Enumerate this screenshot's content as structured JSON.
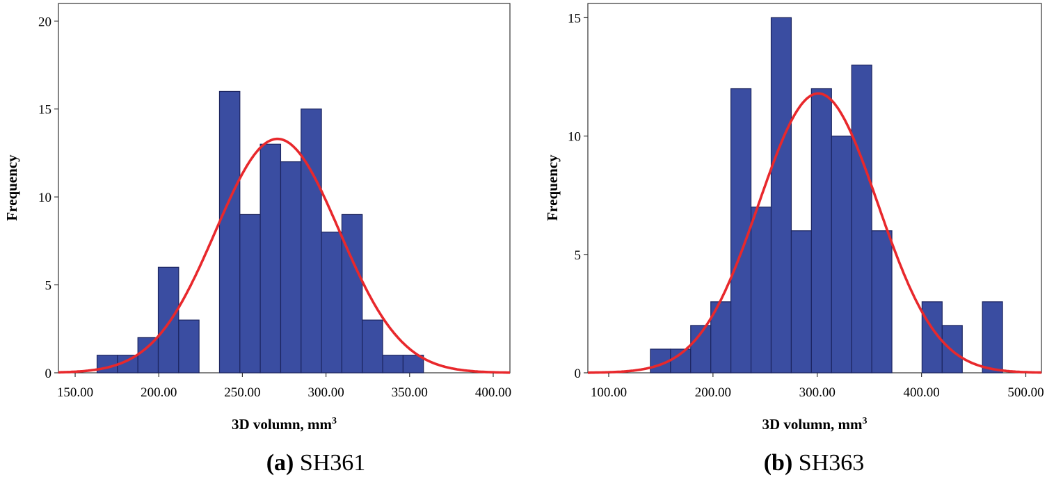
{
  "chart_data": [
    {
      "type": "bar",
      "caption_id": "(a)",
      "caption_name": " SH361",
      "xlabel": "3D volumn, mm",
      "xlabel_sup": "3",
      "ylabel": "Frequency",
      "xlim": [
        140,
        410
      ],
      "ylim": [
        0,
        21
      ],
      "xticks": [
        150,
        200,
        250,
        300,
        350,
        400
      ],
      "xtick_labels": [
        "150.00",
        "200.00",
        "250.00",
        "300.00",
        "350.00",
        "400.00"
      ],
      "yticks": [
        0,
        5,
        10,
        15,
        20
      ],
      "ytick_labels": [
        "0",
        "5",
        "10",
        "15",
        "20"
      ],
      "bin_width": 12.2,
      "bin_starts": [
        163.1,
        175.3,
        187.5,
        199.7,
        211.9,
        236.3,
        248.5,
        260.7,
        272.9,
        285.1,
        297.3,
        309.5,
        321.7,
        333.9,
        346.1
      ],
      "values": [
        1,
        1,
        2,
        6,
        3,
        16,
        9,
        13,
        12,
        15,
        8,
        9,
        3,
        1,
        1
      ],
      "curve": {
        "mean": 271,
        "sd": 37,
        "peak": 13.3
      },
      "colors": {
        "bar": "#3a4da1",
        "curve": "#e8282c"
      }
    },
    {
      "type": "bar",
      "caption_id": "(b)",
      "caption_name": " SH363",
      "xlabel": "3D volumn, mm",
      "xlabel_sup": "3",
      "ylabel": "Frequency",
      "xlim": [
        80,
        515
      ],
      "ylim": [
        0,
        15.6
      ],
      "xticks": [
        100,
        200,
        300,
        400,
        500
      ],
      "xtick_labels": [
        "100.00",
        "200.00",
        "300.00",
        "400.00",
        "500.00"
      ],
      "yticks": [
        0,
        5,
        10,
        15
      ],
      "ytick_labels": [
        "0",
        "5",
        "10",
        "15"
      ],
      "bin_width": 19.3,
      "bin_starts": [
        140,
        159.3,
        178.6,
        197.9,
        217.2,
        236.5,
        255.8,
        275.1,
        294.4,
        313.7,
        333,
        352.3,
        400.5,
        419.8,
        458.4
      ],
      "values": [
        1,
        1,
        2,
        3,
        12,
        7,
        15,
        6,
        12,
        10,
        13,
        6,
        3,
        2,
        3
      ],
      "curve": {
        "mean": 301,
        "sd": 57,
        "peak": 11.8
      },
      "colors": {
        "bar": "#3a4da1",
        "curve": "#e8282c"
      }
    }
  ]
}
